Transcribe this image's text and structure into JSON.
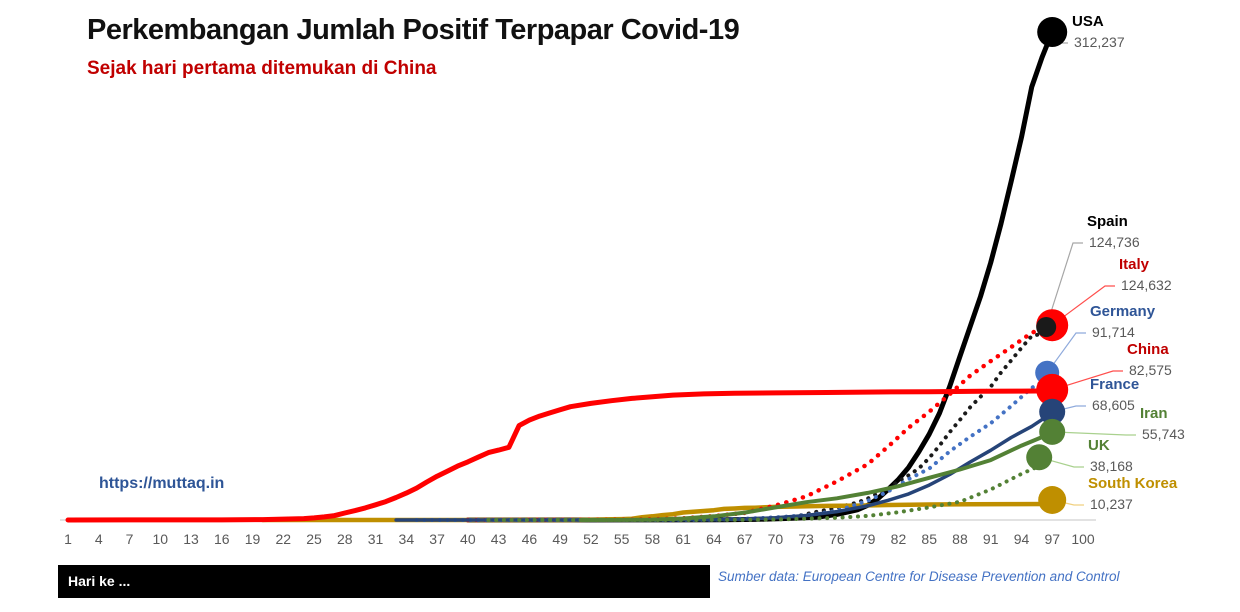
{
  "header": {
    "title": "Perkembangan Jumlah Positif Terpapar Covid-19",
    "subtitle": "Sejak hari pertama ditemukan di China"
  },
  "watermark": "https://muttaq.in",
  "footer": {
    "axis_label": "Hari ke ...",
    "source": "Sumber data: European Centre for Disease Prevention and Control"
  },
  "chart_data": {
    "type": "line",
    "title": "Perkembangan Jumlah Positif Terpapar Covid-19",
    "subtitle": "Sejak hari pertama ditemukan di China",
    "xlabel": "Hari ke ...",
    "ylabel": "",
    "grid": false,
    "legend_position": "right-end-labels",
    "x_range": [
      1,
      100
    ],
    "y_range": [
      0,
      312237
    ],
    "x_ticks": [
      1,
      4,
      7,
      10,
      13,
      16,
      19,
      22,
      25,
      28,
      31,
      34,
      37,
      40,
      43,
      46,
      49,
      52,
      55,
      58,
      61,
      64,
      67,
      70,
      73,
      76,
      79,
      82,
      85,
      88,
      91,
      94,
      97,
      100
    ],
    "axis_color": "#d9d9d9",
    "tick_color": "#595959",
    "series": [
      {
        "id": "usa",
        "name": "USA",
        "final_value": 312237,
        "final_label": "312,237",
        "style": "solid",
        "width": 5,
        "color": "#000000",
        "label_color": "#000000",
        "leader_color": "#a6a6a6",
        "marker_r": 15,
        "marker_offset": [
          0,
          0
        ],
        "label_pos": [
          1072,
          12
        ],
        "points": [
          [
            40,
            0
          ],
          [
            60,
            70
          ],
          [
            65,
            160
          ],
          [
            68,
            400
          ],
          [
            71,
            960
          ],
          [
            74,
            1700
          ],
          [
            76,
            3600
          ],
          [
            78,
            6500
          ],
          [
            79,
            9400
          ],
          [
            80,
            13700
          ],
          [
            81,
            19600
          ],
          [
            82,
            26000
          ],
          [
            83,
            33700
          ],
          [
            84,
            43800
          ],
          [
            85,
            54900
          ],
          [
            86,
            68400
          ],
          [
            87,
            85400
          ],
          [
            88,
            104800
          ],
          [
            89,
            123800
          ],
          [
            90,
            143000
          ],
          [
            91,
            164600
          ],
          [
            92,
            189600
          ],
          [
            93,
            216700
          ],
          [
            94,
            244900
          ],
          [
            95,
            277000
          ],
          [
            96,
            296000
          ],
          [
            97,
            312237
          ]
        ]
      },
      {
        "id": "spain",
        "name": "Spain",
        "final_value": 124736,
        "final_label": "124,736",
        "style": "dotted",
        "width": 4,
        "color": "#1a1a1a",
        "label_color": "#000000",
        "leader_color": "#a6a6a6",
        "marker_r": 10,
        "marker_offset": [
          -6,
          2
        ],
        "label_pos": [
          1087,
          212
        ],
        "points": [
          [
            50,
            0
          ],
          [
            64,
            120
          ],
          [
            67,
            400
          ],
          [
            70,
            1600
          ],
          [
            72,
            2300
          ],
          [
            74,
            5200
          ],
          [
            76,
            7800
          ],
          [
            78,
            11200
          ],
          [
            79,
            13700
          ],
          [
            80,
            17100
          ],
          [
            81,
            20000
          ],
          [
            82,
            24900
          ],
          [
            83,
            28600
          ],
          [
            84,
            33100
          ],
          [
            85,
            39700
          ],
          [
            86,
            47600
          ],
          [
            87,
            56200
          ],
          [
            88,
            64100
          ],
          [
            89,
            72200
          ],
          [
            90,
            78800
          ],
          [
            91,
            85200
          ],
          [
            92,
            94400
          ],
          [
            93,
            102100
          ],
          [
            94,
            110200
          ],
          [
            95,
            117700
          ],
          [
            96,
            119200
          ],
          [
            97,
            124736
          ]
        ]
      },
      {
        "id": "italy",
        "name": "Italy",
        "final_value": 124632,
        "final_label": "124,632",
        "style": "dotted",
        "width": 4.5,
        "color": "#ff0000",
        "label_color": "#c00000",
        "leader_color": "#ff4f4d",
        "marker_r": 16,
        "marker_offset": [
          0,
          0
        ],
        "label_pos": [
          1119,
          255
        ],
        "points": [
          [
            40,
            0
          ],
          [
            55,
            155
          ],
          [
            58,
            470
          ],
          [
            61,
            1100
          ],
          [
            64,
            2500
          ],
          [
            67,
            4600
          ],
          [
            70,
            9200
          ],
          [
            73,
            15100
          ],
          [
            76,
            24700
          ],
          [
            79,
            35700
          ],
          [
            81,
            47000
          ],
          [
            83,
            59100
          ],
          [
            85,
            69200
          ],
          [
            87,
            80500
          ],
          [
            89,
            92400
          ],
          [
            91,
            101700
          ],
          [
            93,
            110600
          ],
          [
            95,
            119800
          ],
          [
            97,
            124632
          ]
        ]
      },
      {
        "id": "germany",
        "name": "Germany",
        "final_value": 91714,
        "final_label": "91,714",
        "style": "dotted",
        "width": 4,
        "color": "#4472c4",
        "label_color": "#2f5597",
        "leader_color": "#8faadc",
        "marker_r": 12,
        "marker_offset": [
          -5,
          -4
        ],
        "label_pos": [
          1090,
          302
        ],
        "points": [
          [
            35,
            5
          ],
          [
            58,
            60
          ],
          [
            61,
            80
          ],
          [
            64,
            160
          ],
          [
            67,
            800
          ],
          [
            70,
            1600
          ],
          [
            73,
            3100
          ],
          [
            76,
            5800
          ],
          [
            79,
            12300
          ],
          [
            81,
            18300
          ],
          [
            83,
            26200
          ],
          [
            85,
            32900
          ],
          [
            87,
            43900
          ],
          [
            89,
            53300
          ],
          [
            91,
            61900
          ],
          [
            93,
            72900
          ],
          [
            95,
            84600
          ],
          [
            97,
            91714
          ]
        ]
      },
      {
        "id": "france",
        "name": "France",
        "final_value": 68605,
        "final_label": "68,605",
        "style": "solid",
        "width": 3.5,
        "color": "#264478",
        "label_color": "#2f5597",
        "leader_color": "#8faadc",
        "marker_r": 13,
        "marker_offset": [
          0,
          -1
        ],
        "label_pos": [
          1090,
          375
        ],
        "points": [
          [
            33,
            3
          ],
          [
            55,
            12
          ],
          [
            61,
            100
          ],
          [
            64,
            210
          ],
          [
            67,
            650
          ],
          [
            70,
            1400
          ],
          [
            73,
            2900
          ],
          [
            76,
            5400
          ],
          [
            79,
            9100
          ],
          [
            81,
            12600
          ],
          [
            83,
            16700
          ],
          [
            85,
            22300
          ],
          [
            87,
            29100
          ],
          [
            89,
            37100
          ],
          [
            91,
            44600
          ],
          [
            93,
            52800
          ],
          [
            95,
            59900
          ],
          [
            97,
            68605
          ]
        ]
      },
      {
        "id": "iran",
        "name": "Iran",
        "final_value": 55743,
        "final_label": "55,743",
        "style": "solid",
        "width": 4,
        "color": "#538135",
        "label_color": "#538135",
        "leader_color": "#a9d18e",
        "marker_r": 13,
        "marker_offset": [
          0,
          -1
        ],
        "label_pos": [
          1140,
          404
        ],
        "points": [
          [
            51,
            2
          ],
          [
            55,
            60
          ],
          [
            58,
            250
          ],
          [
            61,
            980
          ],
          [
            64,
            2340
          ],
          [
            67,
            4750
          ],
          [
            70,
            8040
          ],
          [
            73,
            11360
          ],
          [
            76,
            13900
          ],
          [
            79,
            17360
          ],
          [
            82,
            21640
          ],
          [
            85,
            27020
          ],
          [
            88,
            32330
          ],
          [
            91,
            38300
          ],
          [
            94,
            47590
          ],
          [
            97,
            55743
          ]
        ]
      },
      {
        "id": "uk",
        "name": "UK",
        "final_value": 38168,
        "final_label": "38,168",
        "style": "dotted",
        "width": 4,
        "color": "#538135",
        "label_color": "#538135",
        "leader_color": "#a9d18e",
        "marker_r": 13,
        "marker_offset": [
          -13,
          -3
        ],
        "label_pos": [
          1088,
          436
        ],
        "points": [
          [
            42,
            2
          ],
          [
            60,
            20
          ],
          [
            64,
            51
          ],
          [
            67,
            115
          ],
          [
            70,
            320
          ],
          [
            73,
            800
          ],
          [
            76,
            1400
          ],
          [
            79,
            2640
          ],
          [
            82,
            5020
          ],
          [
            85,
            8080
          ],
          [
            88,
            11660
          ],
          [
            91,
            19520
          ],
          [
            94,
            29470
          ],
          [
            97,
            38168
          ]
        ]
      },
      {
        "id": "south-korea",
        "name": "South Korea",
        "final_value": 10237,
        "final_label": "10,237",
        "style": "solid",
        "width": 4.5,
        "color": "#bf8f00",
        "label_color": "#bf8f00",
        "leader_color": "#f0d080",
        "marker_r": 14,
        "marker_offset": [
          0,
          -4
        ],
        "label_pos": [
          1088,
          474
        ],
        "points": [
          [
            20,
            1
          ],
          [
            33,
            4
          ],
          [
            45,
            16
          ],
          [
            50,
            31
          ],
          [
            52,
            104
          ],
          [
            54,
            433
          ],
          [
            55,
            602
          ],
          [
            56,
            833
          ],
          [
            57,
            1766
          ],
          [
            58,
            2337
          ],
          [
            59,
            3150
          ],
          [
            60,
            3736
          ],
          [
            61,
            4812
          ],
          [
            62,
            5328
          ],
          [
            63,
            5766
          ],
          [
            64,
            6284
          ],
          [
            65,
            7134
          ],
          [
            66,
            7382
          ],
          [
            67,
            7755
          ],
          [
            68,
            7869
          ],
          [
            70,
            8413
          ],
          [
            72,
            8652
          ],
          [
            75,
            9037
          ],
          [
            78,
            9241
          ],
          [
            81,
            9583
          ],
          [
            85,
            9887
          ],
          [
            89,
            10062
          ],
          [
            93,
            10156
          ],
          [
            97,
            10237
          ]
        ]
      },
      {
        "id": "china",
        "name": "China",
        "final_value": 82575,
        "final_label": "82,575",
        "style": "solid",
        "width": 5,
        "color": "#ff0000",
        "label_color": "#c00000",
        "leader_color": "#ff4f4d",
        "marker_r": 16,
        "marker_offset": [
          0,
          -1
        ],
        "label_pos": [
          1127,
          340
        ],
        "points": [
          [
            1,
            27
          ],
          [
            10,
            45
          ],
          [
            16,
            60
          ],
          [
            20,
            280
          ],
          [
            22,
            550
          ],
          [
            24,
            920
          ],
          [
            25,
            1320
          ],
          [
            26,
            2000
          ],
          [
            27,
            2800
          ],
          [
            28,
            4500
          ],
          [
            29,
            6000
          ],
          [
            30,
            7736
          ],
          [
            31,
            9700
          ],
          [
            32,
            11800
          ],
          [
            33,
            14400
          ],
          [
            34,
            17200
          ],
          [
            35,
            20400
          ],
          [
            36,
            24300
          ],
          [
            37,
            28000
          ],
          [
            38,
            31200
          ],
          [
            39,
            34500
          ],
          [
            40,
            37200
          ],
          [
            41,
            40200
          ],
          [
            42,
            43100
          ],
          [
            43,
            44700
          ],
          [
            44,
            46500
          ],
          [
            45,
            60400
          ],
          [
            46,
            63900
          ],
          [
            47,
            66500
          ],
          [
            48,
            68500
          ],
          [
            49,
            70600
          ],
          [
            50,
            72500
          ],
          [
            52,
            74600
          ],
          [
            54,
            76300
          ],
          [
            56,
            77800
          ],
          [
            58,
            78800
          ],
          [
            60,
            79900
          ],
          [
            63,
            80700
          ],
          [
            66,
            81100
          ],
          [
            70,
            81300
          ],
          [
            75,
            81600
          ],
          [
            80,
            81900
          ],
          [
            85,
            82100
          ],
          [
            90,
            82400
          ],
          [
            94,
            82500
          ],
          [
            97,
            82575
          ]
        ]
      }
    ]
  }
}
